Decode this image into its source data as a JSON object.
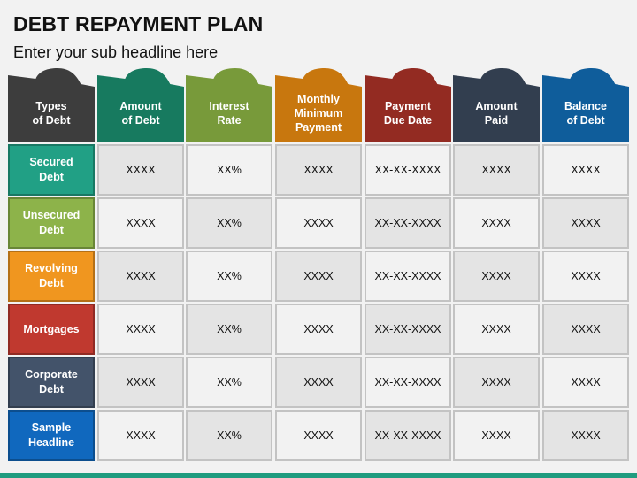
{
  "title": "DEBT REPAYMENT PLAN",
  "subtitle": "Enter your sub headline here",
  "headers": [
    {
      "label": "Types\nof Debt",
      "color": "#3d3d3d"
    },
    {
      "label": "Amount\nof Debt",
      "color": "#177a5f"
    },
    {
      "label": "Interest\nRate",
      "color": "#789a3a"
    },
    {
      "label": "Monthly\nMinimum\nPayment",
      "color": "#c8770e"
    },
    {
      "label": "Payment\nDue Date",
      "color": "#932b22"
    },
    {
      "label": "Amount\nPaid",
      "color": "#323e4f"
    },
    {
      "label": "Balance\nof Debt",
      "color": "#0f5d9b"
    }
  ],
  "rows": [
    {
      "label": "Secured\nDebt",
      "color": "#21a085",
      "values": [
        "XXXX",
        "XX%",
        "XXXX",
        "XX-XX-XXXX",
        "XXXX",
        "XXXX"
      ]
    },
    {
      "label": "Unsecured\nDebt",
      "color": "#8db34a",
      "values": [
        "XXXX",
        "XX%",
        "XXXX",
        "XX-XX-XXXX",
        "XXXX",
        "XXXX"
      ]
    },
    {
      "label": "Revolving\nDebt",
      "color": "#f0961f",
      "values": [
        "XXXX",
        "XX%",
        "XXXX",
        "XX-XX-XXXX",
        "XXXX",
        "XXXX"
      ]
    },
    {
      "label": "Mortgages",
      "color": "#c0392f",
      "values": [
        "XXXX",
        "XX%",
        "XXXX",
        "XX-XX-XXXX",
        "XXXX",
        "XXXX"
      ]
    },
    {
      "label": "Corporate\nDebt",
      "color": "#43536a",
      "values": [
        "XXXX",
        "XX%",
        "XXXX",
        "XX-XX-XXXX",
        "XXXX",
        "XXXX"
      ]
    },
    {
      "label": "Sample\nHeadline",
      "color": "#1068be",
      "values": [
        "XXXX",
        "XX%",
        "XXXX",
        "XX-XX-XXXX",
        "XXXX",
        "XXXX"
      ]
    }
  ]
}
